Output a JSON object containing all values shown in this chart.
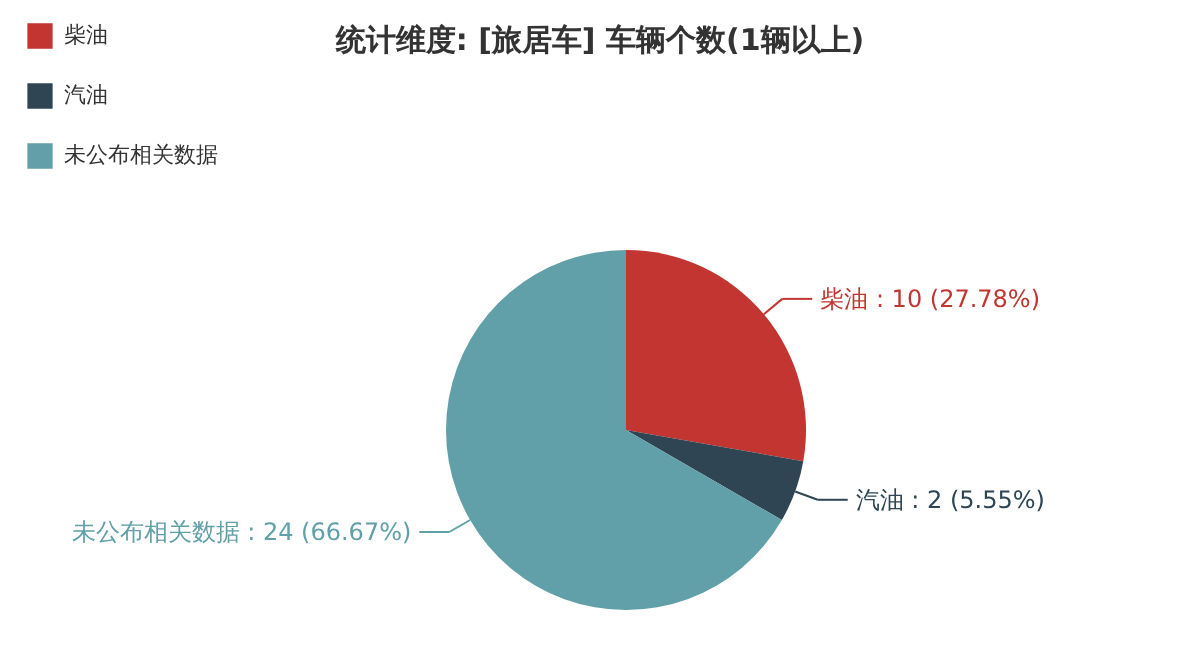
{
  "chart_data": {
    "type": "pie",
    "title": "统计维度: [旅居车] 车辆个数(1辆以上)",
    "categories": [
      "柴油",
      "汽油",
      "未公布相关数据"
    ],
    "values": [
      10,
      2,
      24
    ],
    "colors": [
      "#c23531",
      "#2f4554",
      "#61a0a8"
    ],
    "value_labels": [
      "柴油 : 10 (27.78%)",
      "汽油 : 2 (5.55%)",
      "未公布相关数据 : 24 (66.67%)"
    ],
    "legend": "top left"
  }
}
